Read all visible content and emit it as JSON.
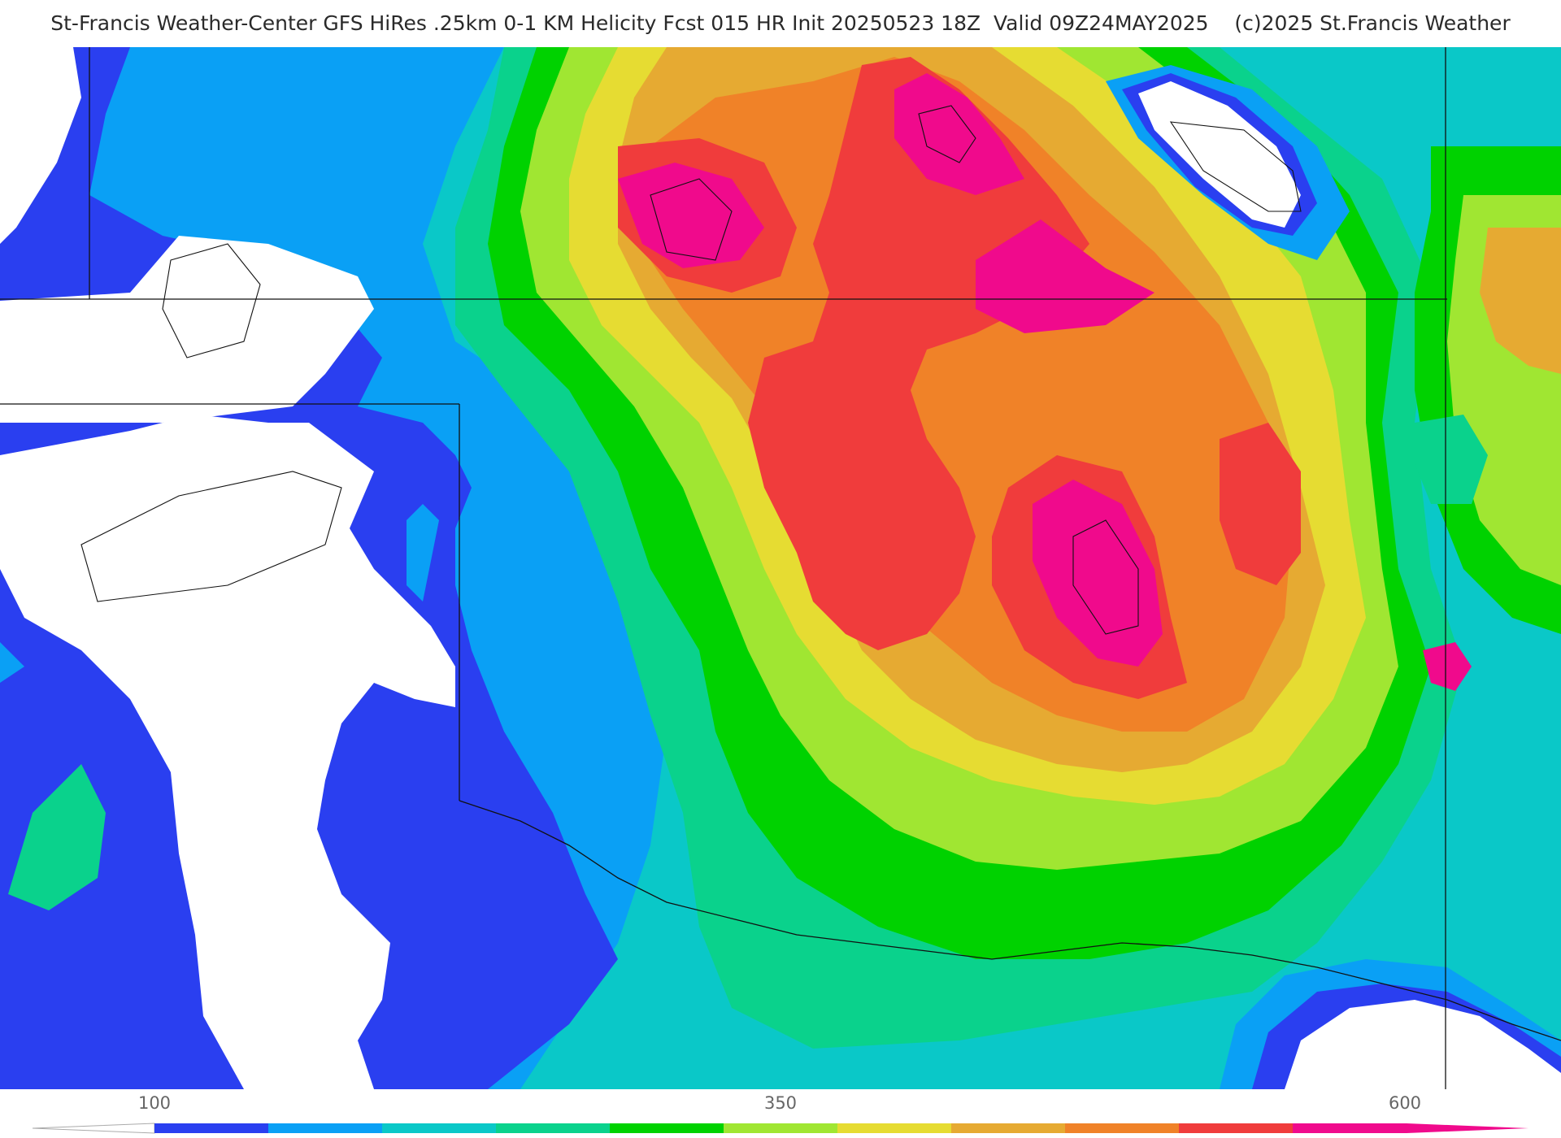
{
  "title": "St-Francis Weather-Center GFS HiRes .25km 0-1 KM Helicity Fcst 015 HR Init 20250523 18Z  Valid 09Z24MAY2025    (c)2025 St.Francis Weather",
  "colorbar": {
    "ticks": [
      "100",
      "350",
      "600"
    ],
    "colors": [
      "#2a3ff0",
      "#0aa0f5",
      "#0ac8c8",
      "#0ad28c",
      "#00d200",
      "#a0e632",
      "#e6dc32",
      "#e6aa32",
      "#f08228",
      "#f03c3c",
      "#f00a8c"
    ]
  },
  "palette": {
    "white": "#ffffff",
    "blue": "#2a3ff0",
    "lightblue": "#0aa0f5",
    "cyan": "#0ac8c8",
    "teal": "#0ad28c",
    "green": "#00d200",
    "yellowgreen": "#a0e632",
    "yellow": "#e6dc32",
    "gold": "#e6aa32",
    "orange": "#f08228",
    "red": "#f03c3c",
    "magenta": "#f00a8c"
  }
}
